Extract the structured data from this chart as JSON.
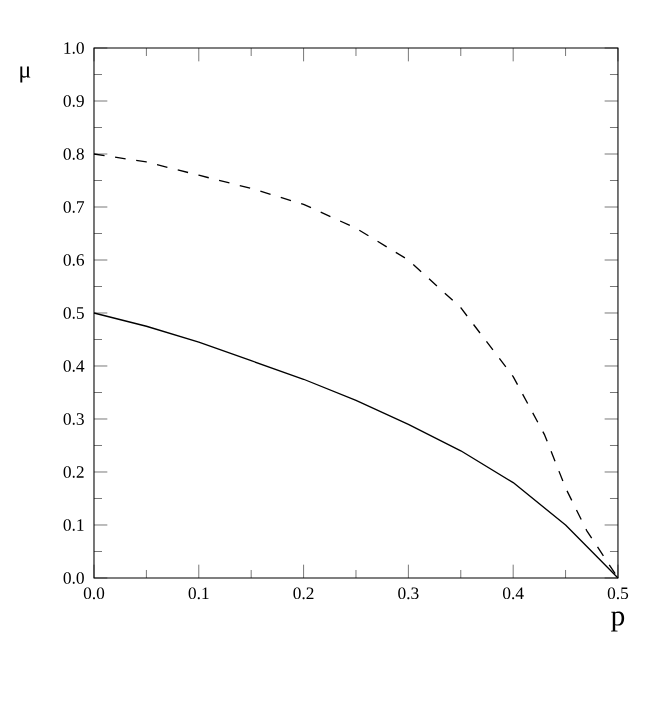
{
  "chart_data": {
    "type": "line",
    "xlabel": "p",
    "ylabel": "μ",
    "xlim": [
      0,
      0.5
    ],
    "ylim": [
      0,
      1
    ],
    "xticks": [
      {
        "value": 0,
        "label": "0.0"
      },
      0.1,
      0.2,
      0.3,
      0.4,
      0.5
    ],
    "yticks": [
      {
        "value": 0,
        "label": "0.0"
      },
      0.1,
      0.2,
      0.3,
      0.4,
      0.5,
      0.6,
      0.7,
      0.8,
      0.9,
      {
        "value": 1,
        "label": "1.0"
      }
    ],
    "grid": false,
    "marker": "none",
    "series": [
      {
        "color": "#000000",
        "line_style": "solid",
        "x": [
          0,
          0.05,
          0.1,
          0.15,
          0.2,
          0.25,
          0.3,
          0.35,
          0.4,
          0.45,
          0.48,
          0.5
        ],
        "values": [
          0.5,
          0.475,
          0.445,
          0.41,
          0.375,
          0.335,
          0.29,
          0.24,
          0.18,
          0.1,
          0.04,
          0.0
        ]
      },
      {
        "color": "#000000",
        "line_style": "dashed",
        "x": [
          0,
          0.05,
          0.1,
          0.15,
          0.2,
          0.25,
          0.3,
          0.35,
          0.4,
          0.43,
          0.45,
          0.47,
          0.49,
          0.5
        ],
        "values": [
          0.8,
          0.785,
          0.76,
          0.735,
          0.705,
          0.66,
          0.6,
          0.51,
          0.38,
          0.27,
          0.17,
          0.09,
          0.03,
          0.0
        ]
      }
    ]
  }
}
